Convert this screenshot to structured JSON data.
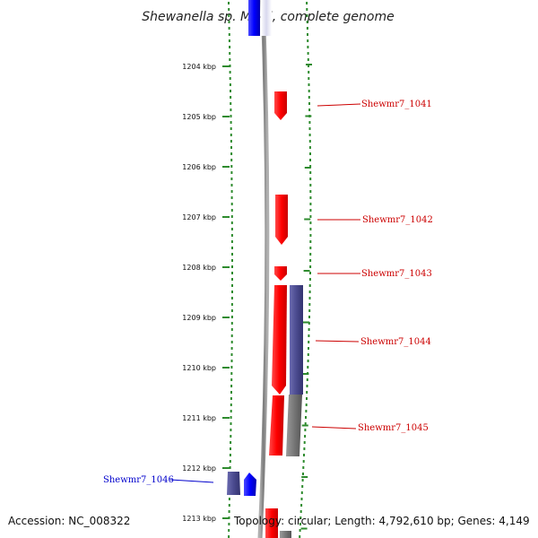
{
  "title": "Shewanella sp. MR-7, complete genome",
  "footer": {
    "accession": "Accession: NC_008322",
    "summary": "Topology: circular; Length: 4,792,610 bp; Genes: 4,149"
  },
  "colors": {
    "dots": "#2e8b2e",
    "forward_gene": "#ff0000",
    "reverse_gene": "#0000ff",
    "purple_feature": "#4b4b8f",
    "grey_feature": "#707070",
    "backbone": "#8c8c8c"
  },
  "ruler": [
    {
      "label": "1204 kbp"
    },
    {
      "label": "1205 kbp"
    },
    {
      "label": "1206 kbp"
    },
    {
      "label": "1207 kbp"
    },
    {
      "label": "1208 kbp"
    },
    {
      "label": "1209 kbp"
    },
    {
      "label": "1210 kbp"
    },
    {
      "label": "1211 kbp"
    },
    {
      "label": "1212 kbp"
    },
    {
      "label": "1213 kbp"
    }
  ],
  "genes": [
    {
      "name": "Shewmr7_1041",
      "strand": "forward",
      "color": "#cc0000"
    },
    {
      "name": "Shewmr7_1042",
      "strand": "forward",
      "color": "#cc0000"
    },
    {
      "name": "Shewmr7_1043",
      "strand": "forward",
      "color": "#cc0000"
    },
    {
      "name": "Shewmr7_1044",
      "strand": "forward",
      "color": "#cc0000"
    },
    {
      "name": "Shewmr7_1045",
      "strand": "forward",
      "color": "#cc0000"
    },
    {
      "name": "Shewmr7_1046",
      "strand": "reverse",
      "color": "#0000cc"
    }
  ]
}
